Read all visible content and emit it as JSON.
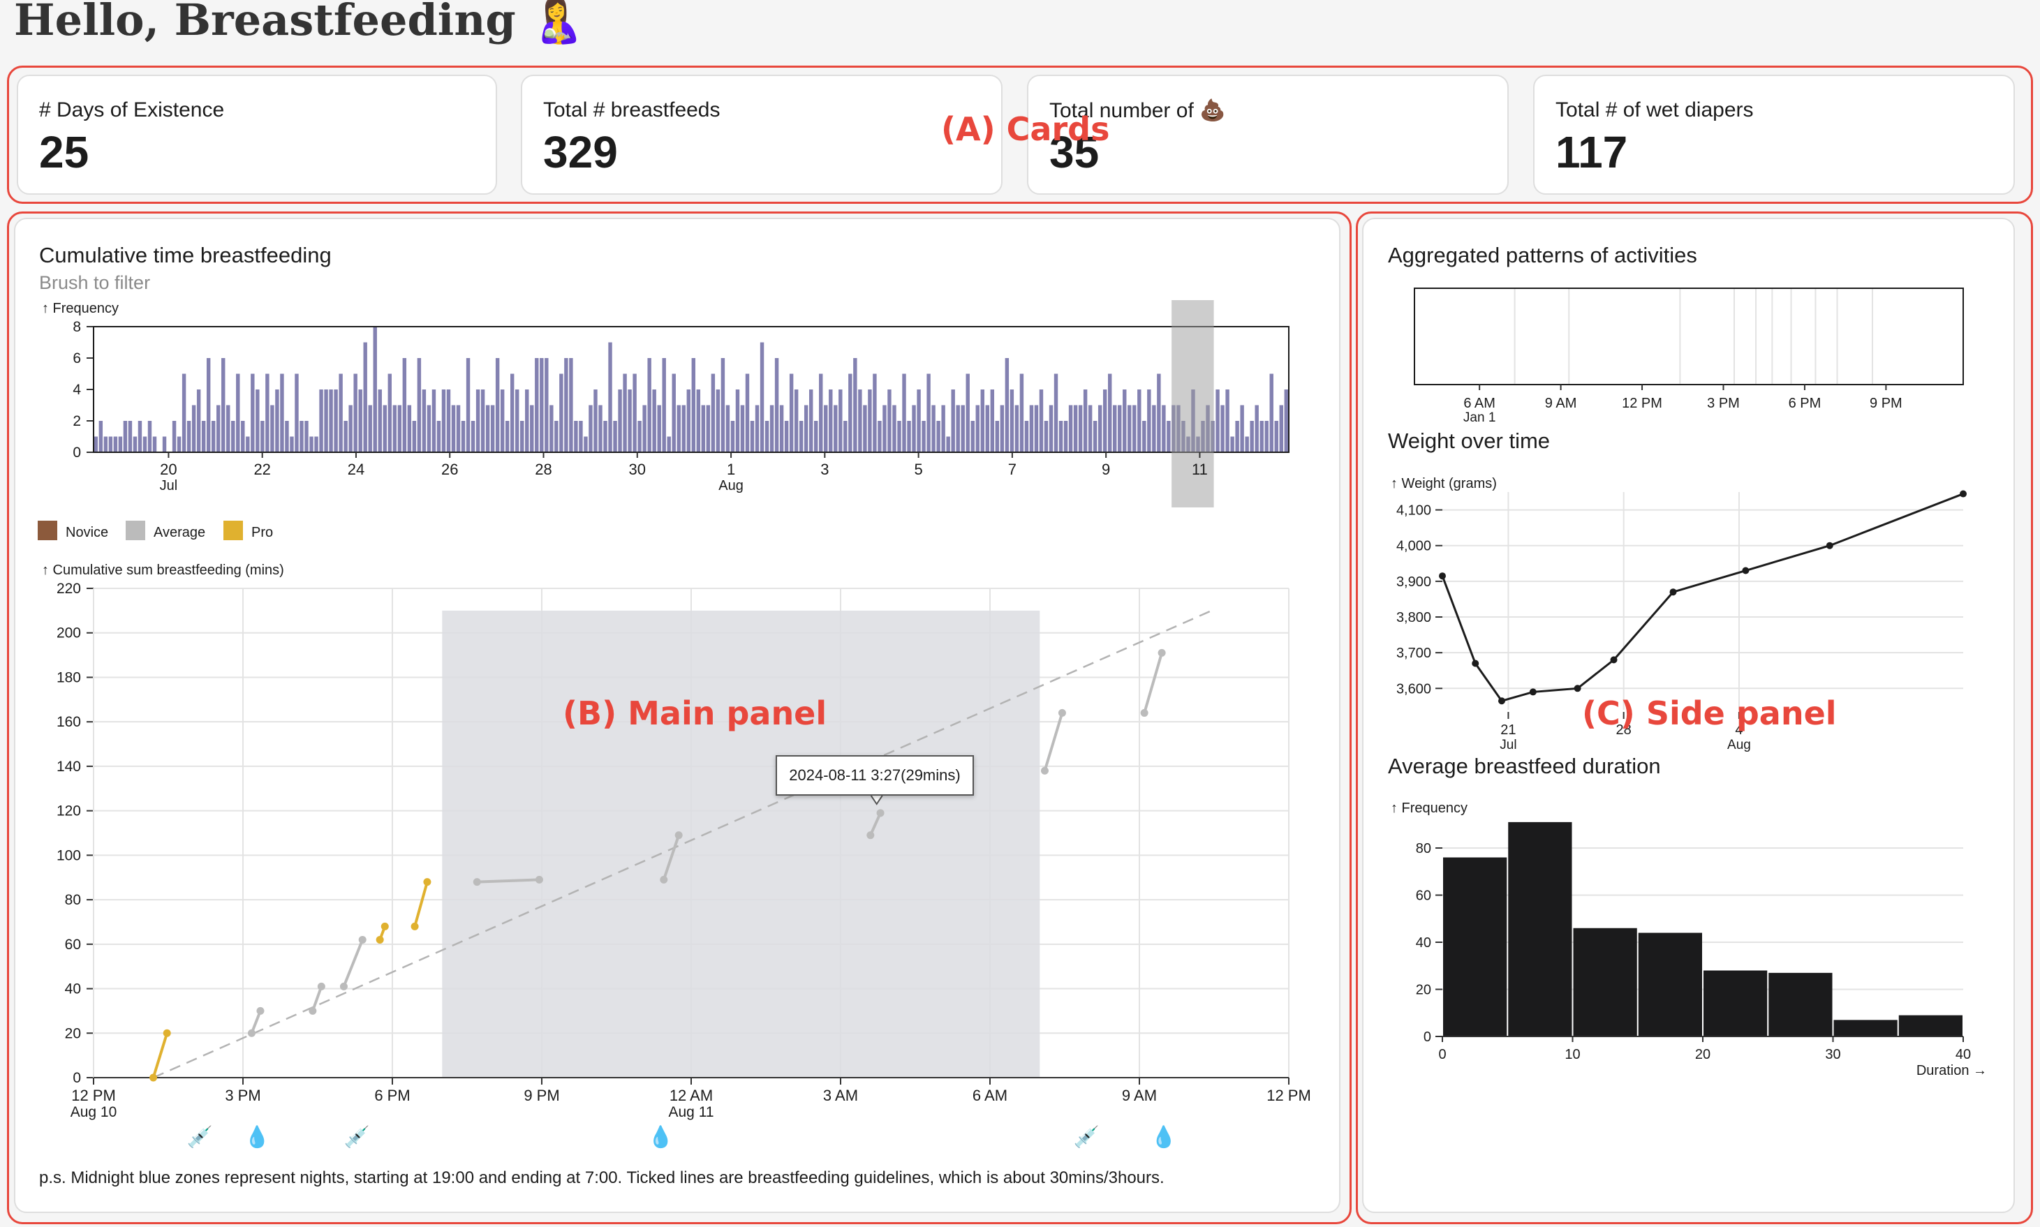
{
  "page": {
    "title": "Hello, Breastfeeding",
    "title_emoji": "🤱"
  },
  "annotations": {
    "cards": "(A) Cards",
    "main": "(B) Main panel",
    "side": "(C) Side panel",
    "color": "#e8473c"
  },
  "cards": [
    {
      "label": "# Days of Existence",
      "value": "25"
    },
    {
      "label": "Total # breastfeeds",
      "value": "329"
    },
    {
      "label": "Total number of",
      "label_emoji": "💩",
      "value": "35"
    },
    {
      "label": "Total # of wet diapers",
      "value": "117"
    }
  ],
  "main": {
    "title": "Cumulative time breastfeeding",
    "subtitle": "Brush to filter",
    "note": "p.s. Midnight blue zones represent nights, starting at 19:00 and ending at 7:00. Ticked lines are breastfeeding guidelines, which is about 30mins/3hours.",
    "tooltip": "2024-08-11 3:27(29mins)",
    "legend": [
      {
        "label": "Novice",
        "color": "#8c5a3c"
      },
      {
        "label": "Average",
        "color": "#bbbbbb"
      },
      {
        "label": "Pro",
        "color": "#e0b12f"
      }
    ],
    "bottom_icons": [
      {
        "icon": "syringe-drop-icon",
        "glyph": "💉",
        "x_hours": 4.2
      },
      {
        "icon": "drop-icon",
        "glyph": "💧",
        "x_hours": 6.5
      },
      {
        "icon": "syringe-icon",
        "glyph": "💉",
        "x_hours": 10.5
      },
      {
        "icon": "drop-icon",
        "glyph": "💧",
        "x_hours": 22.7
      },
      {
        "icon": "syringe-icon",
        "glyph": "💉",
        "x_hours": 39.8
      },
      {
        "icon": "drop-icon",
        "glyph": "💧",
        "x_hours": 42.9
      }
    ]
  },
  "side": {
    "title_patterns": "Aggregated patterns of activities",
    "title_weight": "Weight over time",
    "title_duration": "Average breastfeed duration"
  },
  "chart_data": [
    {
      "id": "frequency",
      "type": "bar",
      "ylabel": "↑ Frequency",
      "ylim": [
        0,
        8
      ],
      "yticks": [
        0,
        2,
        4,
        6,
        8
      ],
      "xlim_days": [
        0,
        25.5
      ],
      "xticks": [
        {
          "label": "20",
          "sub": "Jul",
          "day": 1.6
        },
        {
          "label": "22",
          "sub": "",
          "day": 3.6
        },
        {
          "label": "24",
          "sub": "",
          "day": 5.6
        },
        {
          "label": "26",
          "sub": "",
          "day": 7.6
        },
        {
          "label": "28",
          "sub": "",
          "day": 9.6
        },
        {
          "label": "30",
          "sub": "",
          "day": 11.6
        },
        {
          "label": "1",
          "sub": "Aug",
          "day": 13.6
        },
        {
          "label": "3",
          "sub": "",
          "day": 15.6
        },
        {
          "label": "5",
          "sub": "",
          "day": 17.6
        },
        {
          "label": "7",
          "sub": "",
          "day": 19.6
        },
        {
          "label": "9",
          "sub": "",
          "day": 21.6
        },
        {
          "label": "11",
          "sub": "",
          "day": 23.6
        }
      ],
      "brush_days": [
        23.0,
        23.9
      ],
      "values": [
        1,
        2,
        1,
        1,
        1,
        1,
        2,
        2,
        1,
        2,
        1,
        2,
        1,
        0,
        1,
        0,
        2,
        1,
        5,
        2,
        3,
        4,
        2,
        6,
        2,
        3,
        6,
        3,
        2,
        5,
        2,
        1,
        5,
        4,
        2,
        5,
        3,
        4,
        5,
        2,
        1,
        5,
        2,
        2,
        1,
        1,
        4,
        4,
        4,
        4,
        5,
        2,
        3,
        5,
        4,
        7,
        3,
        8,
        4,
        3,
        5,
        3,
        3,
        6,
        3,
        2,
        6,
        4,
        3,
        4,
        2,
        4,
        4,
        3,
        3,
        2,
        6,
        2,
        4,
        4,
        3,
        3,
        6,
        4,
        2,
        5,
        4,
        2,
        4,
        3,
        6,
        6,
        6,
        3,
        2,
        5,
        6,
        6,
        2,
        2,
        1,
        3,
        4,
        3,
        2,
        7,
        2,
        4,
        5,
        4,
        5,
        2,
        3,
        6,
        4,
        3,
        6,
        1,
        5,
        3,
        3,
        4,
        6,
        4,
        3,
        3,
        5,
        4,
        6,
        3,
        2,
        4,
        3,
        5,
        2,
        3,
        7,
        2,
        3,
        6,
        3,
        2,
        5,
        4,
        2,
        3,
        4,
        2,
        5,
        3,
        4,
        3,
        4,
        2,
        5,
        6,
        4,
        3,
        4,
        5,
        2,
        3,
        4,
        3,
        2,
        5,
        2,
        3,
        4,
        2,
        5,
        3,
        2,
        3,
        1,
        4,
        3,
        3,
        5,
        2,
        3,
        4,
        3,
        4,
        2,
        3,
        6,
        4,
        3,
        5,
        2,
        3,
        3,
        4,
        2,
        3,
        5,
        2,
        2,
        3,
        3,
        3,
        4,
        3,
        2,
        3,
        4,
        5,
        3,
        3,
        4,
        3,
        3,
        4,
        2,
        4,
        3,
        5,
        3,
        2,
        3,
        3,
        2,
        1,
        4,
        1,
        2,
        3,
        2,
        4,
        3,
        4,
        1,
        2,
        3,
        1,
        2,
        3,
        2,
        2,
        5,
        2,
        3,
        4
      ]
    },
    {
      "id": "cumulative",
      "type": "line",
      "ylabel": "↑ Cumulative sum breastfeeding (mins)",
      "ylim": [
        0,
        220
      ],
      "yticks": [
        0,
        20,
        40,
        60,
        80,
        100,
        120,
        140,
        160,
        180,
        200,
        220
      ],
      "xlim_hours": [
        0,
        48
      ],
      "xticks": [
        {
          "label": "12 PM",
          "sub": "Aug 10",
          "h": 0
        },
        {
          "label": "3 PM",
          "sub": "",
          "h": 6
        },
        {
          "label": "6 PM",
          "sub": "",
          "h": 12
        },
        {
          "label": "9 PM",
          "sub": "",
          "h": 18
        },
        {
          "label": "12 AM",
          "sub": "Aug 11",
          "h": 24
        },
        {
          "label": "3 AM",
          "sub": "",
          "h": 30
        },
        {
          "label": "6 AM",
          "sub": "",
          "h": 36
        },
        {
          "label": "9 AM",
          "sub": "",
          "h": 42
        },
        {
          "label": "12 PM",
          "sub": "",
          "h": 48
        }
      ],
      "night_hours": [
        14,
        38
      ],
      "guideline": [
        [
          2.4,
          0
        ],
        [
          44.9,
          210
        ]
      ],
      "segments": [
        {
          "level": "Pro",
          "points": [
            [
              2.4,
              0
            ],
            [
              2.95,
              20
            ]
          ]
        },
        {
          "level": "Average",
          "points": [
            [
              6.35,
              20
            ],
            [
              6.7,
              30
            ]
          ]
        },
        {
          "level": "Average",
          "points": [
            [
              8.8,
              30
            ],
            [
              9.15,
              41
            ]
          ]
        },
        {
          "level": "Average",
          "points": [
            [
              10.05,
              41
            ],
            [
              10.8,
              62
            ]
          ]
        },
        {
          "level": "Pro",
          "points": [
            [
              11.5,
              62
            ],
            [
              11.7,
              68
            ]
          ]
        },
        {
          "level": "Pro",
          "points": [
            [
              12.9,
              68
            ],
            [
              13.4,
              88
            ]
          ]
        },
        {
          "level": "Average",
          "points": [
            [
              15.4,
              88
            ],
            [
              17.9,
              89
            ]
          ]
        },
        {
          "level": "Average",
          "points": [
            [
              22.9,
              89
            ],
            [
              23.5,
              109
            ]
          ]
        },
        {
          "level": "Average",
          "points": [
            [
              31.2,
              109
            ],
            [
              31.6,
              119
            ]
          ]
        },
        {
          "level": "Average",
          "points": [
            [
              38.2,
              138
            ],
            [
              38.9,
              164
            ]
          ]
        },
        {
          "level": "Average",
          "points": [
            [
              42.2,
              164
            ],
            [
              42.9,
              191
            ]
          ]
        }
      ],
      "tooltip_point": [
        31.45,
        117
      ]
    },
    {
      "id": "patterns",
      "type": "heatmap",
      "xlim_hours": [
        3.6,
        23.85
      ],
      "xticks": [
        {
          "label": "6 AM",
          "sub": "Jan 1",
          "h": 6
        },
        {
          "label": "9 AM",
          "sub": "",
          "h": 9
        },
        {
          "label": "12 PM",
          "sub": "",
          "h": 12
        },
        {
          "label": "3 PM",
          "sub": "",
          "h": 15
        },
        {
          "label": "6 PM",
          "sub": "",
          "h": 18
        },
        {
          "label": "9 PM",
          "sub": "",
          "h": 21
        }
      ],
      "event_hours": [
        7.3,
        9.3,
        13.4,
        15.4,
        16.2,
        16.8,
        17.5,
        18.4,
        19.2,
        20.5
      ]
    },
    {
      "id": "weight",
      "type": "line",
      "ylabel": "↑ Weight (grams)",
      "ylim": [
        3540,
        4150
      ],
      "yticks": [
        3600,
        3700,
        3800,
        3900,
        4000,
        4100
      ],
      "xlim_days": [
        0,
        31.6
      ],
      "xticks": [
        {
          "label": "21",
          "sub": "Jul",
          "day": 4
        },
        {
          "label": "28",
          "sub": "",
          "day": 11
        },
        {
          "label": "4",
          "sub": "Aug",
          "day": 18
        }
      ],
      "x_days": [
        0,
        2.0,
        3.6,
        5.5,
        8.2,
        10.4,
        14.0,
        18.4,
        23.5,
        31.6
      ],
      "values": [
        3915,
        3670,
        3565,
        3590,
        3600,
        3680,
        3870,
        3930,
        4000,
        4145
      ]
    },
    {
      "id": "duration",
      "type": "bar",
      "ylabel": "↑ Frequency",
      "xlabel": "Duration →",
      "ylim": [
        0,
        96
      ],
      "yticks": [
        0,
        20,
        40,
        60,
        80
      ],
      "xticks": [
        0,
        10,
        20,
        30,
        40
      ],
      "bins": [
        [
          0,
          5
        ],
        [
          5,
          10
        ],
        [
          10,
          15
        ],
        [
          15,
          20
        ],
        [
          20,
          25
        ],
        [
          25,
          30
        ],
        [
          30,
          35
        ],
        [
          35,
          40
        ]
      ],
      "values": [
        76,
        91,
        46,
        44,
        28,
        27,
        7,
        9
      ]
    }
  ]
}
